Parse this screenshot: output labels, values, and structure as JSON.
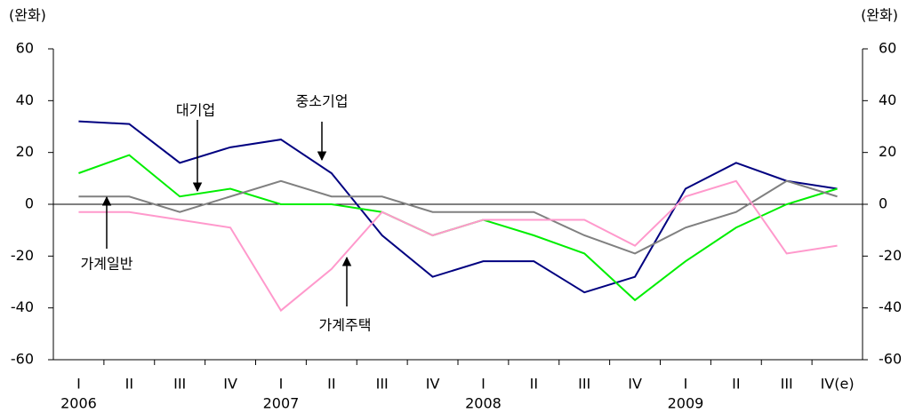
{
  "chart_data": {
    "type": "line",
    "y_unit_label": "(완화)",
    "categories": [
      "I",
      "II",
      "III",
      "IV",
      "I",
      "II",
      "III",
      "IV",
      "I",
      "II",
      "III",
      "IV",
      "I",
      "II",
      "III",
      "IV(e)"
    ],
    "year_labels": [
      "2006",
      "2007",
      "2008",
      "2009"
    ],
    "series": [
      {
        "name": "중소기업",
        "color": "#000080",
        "values": [
          32,
          31,
          16,
          22,
          25,
          12,
          -12,
          -28,
          -22,
          -22,
          -34,
          -28,
          6,
          16,
          9,
          6
        ]
      },
      {
        "name": "대기업",
        "color": "#00ee00",
        "values": [
          12,
          19,
          3,
          6,
          0,
          0,
          -3,
          -12,
          -6,
          -12,
          -19,
          -37,
          -22,
          -9,
          0,
          6
        ]
      },
      {
        "name": "가계일반",
        "color": "#808080",
        "values": [
          3,
          3,
          -3,
          3,
          9,
          3,
          3,
          -3,
          -3,
          -3,
          -12,
          -19,
          -9,
          -3,
          9,
          3
        ]
      },
      {
        "name": "가계주택",
        "color": "#ff99cc",
        "values": [
          -3,
          -3,
          -6,
          -9,
          -41,
          -25,
          -3,
          -12,
          -6,
          -6,
          -6,
          -16,
          3,
          9,
          -19,
          -16
        ]
      }
    ],
    "ylim": [
      -60,
      60
    ],
    "yticks": [
      -60,
      -40,
      -20,
      0,
      20,
      40,
      60
    ],
    "y2lim": [
      -60,
      60
    ],
    "y2ticks": [
      -60,
      -40,
      -20,
      0,
      20,
      40,
      60
    ]
  }
}
